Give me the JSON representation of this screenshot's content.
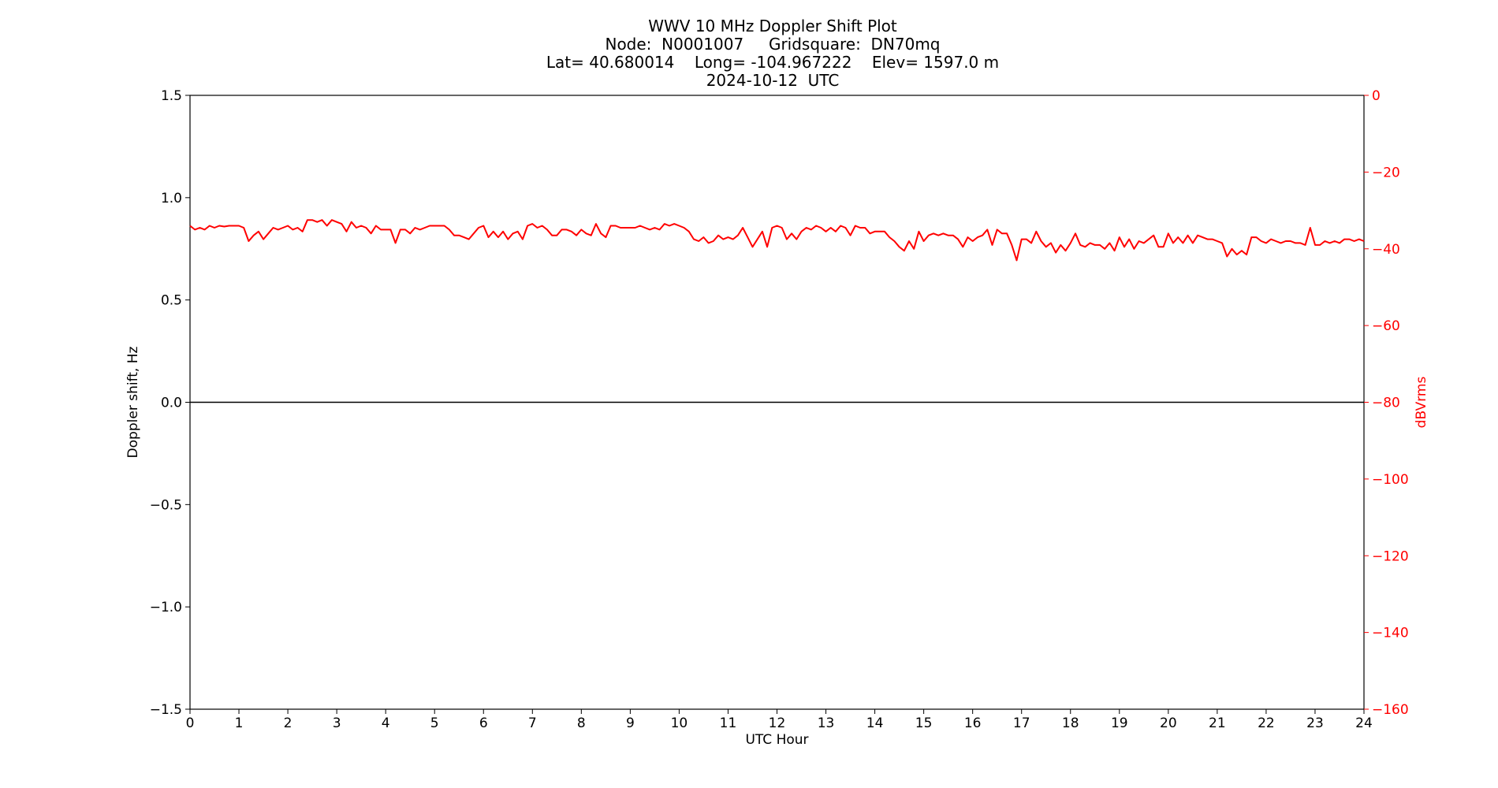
{
  "chart_data": {
    "type": "line",
    "title_lines": [
      "WWV 10 MHz Doppler Shift Plot",
      "Node:  N0001007     Gridsquare:  DN70mq",
      "Lat= 40.680014    Long= -104.967222    Elev= 1597.0 m",
      "2024-10-12  UTC"
    ],
    "xlabel": "UTC Hour",
    "ylabel": "Doppler shift, Hz",
    "y2label": "dBVrms",
    "xlim": [
      0,
      24
    ],
    "ylim": [
      -1.5,
      1.5
    ],
    "y2lim": [
      -160,
      0
    ],
    "x_ticks": [
      "0",
      "1",
      "2",
      "3",
      "4",
      "5",
      "6",
      "7",
      "8",
      "9",
      "10",
      "11",
      "12",
      "13",
      "14",
      "15",
      "16",
      "17",
      "18",
      "19",
      "20",
      "21",
      "22",
      "23",
      "24"
    ],
    "y_ticks": [
      {
        "value": 1.5,
        "label": "1.5"
      },
      {
        "value": 1.0,
        "label": "1.0"
      },
      {
        "value": 0.5,
        "label": "0.5"
      },
      {
        "value": 0.0,
        "label": "0.0"
      },
      {
        "value": -0.5,
        "label": "−0.5"
      },
      {
        "value": -1.0,
        "label": "−1.0"
      },
      {
        "value": -1.5,
        "label": "−1.5"
      }
    ],
    "y2_ticks": [
      {
        "value": 0,
        "label": "0"
      },
      {
        "value": -20,
        "label": "−20"
      },
      {
        "value": -40,
        "label": "−40"
      },
      {
        "value": -60,
        "label": "−60"
      },
      {
        "value": -80,
        "label": "−80"
      },
      {
        "value": -100,
        "label": "−100"
      },
      {
        "value": -120,
        "label": "−120"
      },
      {
        "value": -140,
        "label": "−140"
      },
      {
        "value": -160,
        "label": "−160"
      }
    ],
    "grid": false,
    "series": [
      {
        "axis": "left",
        "color": "#000000",
        "x": [
          0,
          4,
          8,
          12,
          16,
          20,
          24
        ],
        "values": [
          0.0,
          0.0,
          0.0,
          0.0,
          0.0,
          0.0,
          0.0
        ]
      },
      {
        "axis": "right",
        "color": "#ff0000",
        "x": [
          0,
          0.1,
          0.2,
          0.3,
          0.4,
          0.5,
          0.6,
          0.7,
          0.8,
          0.9,
          1.0,
          1.1,
          1.2,
          1.3,
          1.4,
          1.5,
          1.6,
          1.7,
          1.8,
          1.9,
          2.0,
          2.1,
          2.2,
          2.3,
          2.4,
          2.5,
          2.6,
          2.7,
          2.8,
          2.9,
          3.0,
          3.1,
          3.2,
          3.3,
          3.4,
          3.5,
          3.6,
          3.7,
          3.8,
          3.9,
          4.0,
          4.1,
          4.2,
          4.3,
          4.4,
          4.5,
          4.6,
          4.7,
          4.8,
          4.9,
          5.0,
          5.1,
          5.2,
          5.3,
          5.4,
          5.5,
          5.6,
          5.7,
          5.8,
          5.9,
          6.0,
          6.1,
          6.2,
          6.3,
          6.4,
          6.5,
          6.6,
          6.7,
          6.8,
          6.9,
          7.0,
          7.1,
          7.2,
          7.3,
          7.4,
          7.5,
          7.6,
          7.7,
          7.8,
          7.9,
          8.0,
          8.1,
          8.2,
          8.3,
          8.4,
          8.5,
          8.6,
          8.7,
          8.8,
          8.9,
          9.0,
          9.1,
          9.2,
          9.3,
          9.4,
          9.5,
          9.6,
          9.7,
          9.8,
          9.9,
          10.0,
          10.1,
          10.2,
          10.3,
          10.4,
          10.5,
          10.6,
          10.7,
          10.8,
          10.9,
          11.0,
          11.1,
          11.2,
          11.3,
          11.4,
          11.5,
          11.6,
          11.7,
          11.8,
          11.9,
          12.0,
          12.1,
          12.2,
          12.3,
          12.4,
          12.5,
          12.6,
          12.7,
          12.8,
          12.9,
          13.0,
          13.1,
          13.2,
          13.3,
          13.4,
          13.5,
          13.6,
          13.7,
          13.8,
          13.9,
          14.0,
          14.1,
          14.2,
          14.3,
          14.4,
          14.5,
          14.6,
          14.7,
          14.8,
          14.9,
          15.0,
          15.1,
          15.2,
          15.3,
          15.4,
          15.5,
          15.6,
          15.7,
          15.8,
          15.9,
          16.0,
          16.1,
          16.2,
          16.3,
          16.4,
          16.5,
          16.6,
          16.7,
          16.8,
          16.9,
          17.0,
          17.1,
          17.2,
          17.3,
          17.4,
          17.5,
          17.6,
          17.7,
          17.8,
          17.9,
          18.0,
          18.1,
          18.2,
          18.3,
          18.4,
          18.5,
          18.6,
          18.7,
          18.8,
          18.9,
          19.0,
          19.1,
          19.2,
          19.3,
          19.4,
          19.5,
          19.6,
          19.7,
          19.8,
          19.9,
          20.0,
          20.1,
          20.2,
          20.3,
          20.4,
          20.5,
          20.6,
          20.7,
          20.8,
          20.9,
          21.0,
          21.1,
          21.2,
          21.3,
          21.4,
          21.5,
          21.6,
          21.7,
          21.8,
          21.9,
          22.0,
          22.1,
          22.2,
          22.3,
          22.4,
          22.5,
          22.6,
          22.7,
          22.8,
          22.9,
          23.0,
          23.1,
          23.2,
          23.3,
          23.4,
          23.5,
          23.6,
          23.7,
          23.8,
          23.9,
          24.0
        ],
        "values": [
          -34.0,
          -35.0,
          -34.5,
          -35.0,
          -34.0,
          -34.5,
          -34.0,
          -34.2,
          -34.0,
          -34.0,
          -34.0,
          -34.5,
          -38.0,
          -36.5,
          -35.5,
          -37.5,
          -36.0,
          -34.5,
          -35.0,
          -34.5,
          -34.0,
          -35.0,
          -34.5,
          -35.5,
          -32.5,
          -32.5,
          -33.0,
          -32.5,
          -34.0,
          -32.5,
          -33.0,
          -33.5,
          -35.5,
          -33.0,
          -34.5,
          -34.0,
          -34.5,
          -36.0,
          -34.0,
          -35.0,
          -35.0,
          -35.0,
          -38.5,
          -35.0,
          -35.0,
          -36.0,
          -34.5,
          -35.0,
          -34.5,
          -34.0,
          -34.0,
          -34.0,
          -34.0,
          -35.0,
          -36.5,
          -36.5,
          -37.0,
          -37.5,
          -36.0,
          -34.5,
          -34.0,
          -37.0,
          -35.5,
          -37.0,
          -35.5,
          -37.5,
          -36.0,
          -35.5,
          -37.5,
          -34.0,
          -33.5,
          -34.5,
          -34.0,
          -35.0,
          -36.5,
          -36.5,
          -35.0,
          -35.0,
          -35.5,
          -36.5,
          -35.0,
          -36.0,
          -36.5,
          -33.5,
          -36.0,
          -37.0,
          -34.0,
          -34.0,
          -34.5,
          -34.5,
          -34.5,
          -34.5,
          -34.0,
          -34.5,
          -35.0,
          -34.5,
          -35.0,
          -33.5,
          -34.0,
          -33.5,
          -34.0,
          -34.5,
          -35.5,
          -37.5,
          -38.0,
          -37.0,
          -38.5,
          -38.0,
          -36.5,
          -37.5,
          -37.0,
          -37.5,
          -36.5,
          -34.5,
          -37.0,
          -39.5,
          -37.5,
          -35.5,
          -39.5,
          -34.5,
          -34.0,
          -34.5,
          -37.5,
          -36.0,
          -37.5,
          -35.5,
          -34.5,
          -35.0,
          -34.0,
          -34.5,
          -35.5,
          -34.5,
          -35.5,
          -34.0,
          -34.5,
          -36.5,
          -34.0,
          -34.5,
          -34.5,
          -36.0,
          -35.5,
          -35.5,
          -35.5,
          -37.0,
          -38.0,
          -39.5,
          -40.5,
          -38.0,
          -40.0,
          -35.5,
          -38.0,
          -36.5,
          -36.0,
          -36.5,
          -36.0,
          -36.5,
          -36.5,
          -37.5,
          -39.5,
          -37.0,
          -38.0,
          -37.0,
          -36.5,
          -35.0,
          -39.0,
          -35.0,
          -36.0,
          -36.0,
          -39.0,
          -43.0,
          -37.5,
          -37.5,
          -38.5,
          -35.5,
          -38.0,
          -39.5,
          -38.5,
          -41.0,
          -39.0,
          -40.5,
          -38.5,
          -36.0,
          -39.0,
          -39.5,
          -38.5,
          -39.0,
          -39.0,
          -40.0,
          -38.5,
          -40.5,
          -37.0,
          -39.5,
          -37.5,
          -40.0,
          -38.0,
          -38.5,
          -37.5,
          -36.5,
          -39.5,
          -39.5,
          -36.0,
          -38.5,
          -37.0,
          -38.5,
          -36.5,
          -38.5,
          -36.5,
          -37.0,
          -37.5,
          -37.5,
          -38.0,
          -38.5,
          -42.0,
          -40.0,
          -41.5,
          -40.5,
          -41.5,
          -37.0,
          -37.0,
          -38.0,
          -38.5,
          -37.5,
          -38.0,
          -38.5,
          -38.0,
          -38.0,
          -38.5,
          -38.5,
          -39.0,
          -34.5,
          -39.0,
          -39.0,
          -38.0,
          -38.5,
          -38.0,
          -38.5,
          -37.5,
          -37.5,
          -38.0,
          -37.5,
          -38.0
        ]
      }
    ]
  }
}
